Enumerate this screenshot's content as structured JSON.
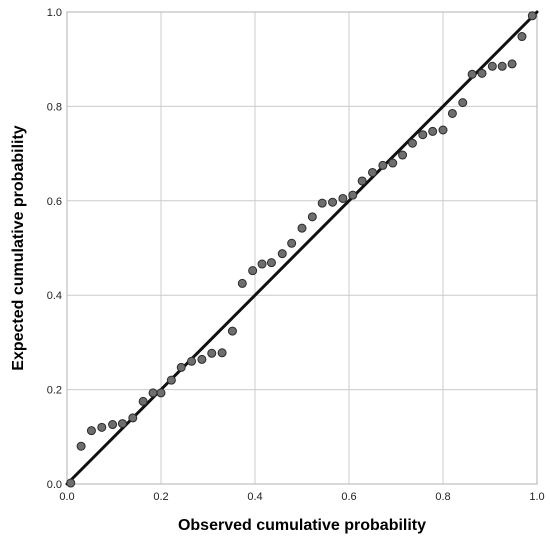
{
  "chart_data": {
    "type": "scatter",
    "xlabel": "Observed cumulative probability",
    "ylabel": "Expected cumulative probability",
    "xlim": [
      0,
      1
    ],
    "ylim": [
      0,
      1
    ],
    "xticks": [
      "0.0",
      "0.2",
      "0.4",
      "0.6",
      "0.8",
      "1.0"
    ],
    "yticks": [
      "0.0",
      "0.2",
      "0.4",
      "0.6",
      "0.8",
      "1.0"
    ],
    "grid": true,
    "reference_line": {
      "from": [
        0,
        0
      ],
      "to": [
        1,
        1
      ]
    },
    "colors": {
      "point_fill": "#6e6e6e",
      "point_stroke": "#2a2a2a",
      "line": "#111111",
      "grid": "#cccccc",
      "frame": "#b0b0b0"
    },
    "series": [
      {
        "points": [
          [
            0.008,
            0.002
          ],
          [
            0.03,
            0.08
          ],
          [
            0.052,
            0.113
          ],
          [
            0.074,
            0.12
          ],
          [
            0.097,
            0.126
          ],
          [
            0.118,
            0.128
          ],
          [
            0.14,
            0.14
          ],
          [
            0.162,
            0.175
          ],
          [
            0.183,
            0.193
          ],
          [
            0.2,
            0.193
          ],
          [
            0.222,
            0.22
          ],
          [
            0.243,
            0.247
          ],
          [
            0.265,
            0.26
          ],
          [
            0.287,
            0.264
          ],
          [
            0.308,
            0.277
          ],
          [
            0.33,
            0.278
          ],
          [
            0.352,
            0.324
          ],
          [
            0.373,
            0.425
          ],
          [
            0.395,
            0.452
          ],
          [
            0.415,
            0.466
          ],
          [
            0.435,
            0.469
          ],
          [
            0.458,
            0.488
          ],
          [
            0.478,
            0.51
          ],
          [
            0.5,
            0.542
          ],
          [
            0.522,
            0.566
          ],
          [
            0.543,
            0.595
          ],
          [
            0.565,
            0.597
          ],
          [
            0.587,
            0.605
          ],
          [
            0.608,
            0.612
          ],
          [
            0.628,
            0.642
          ],
          [
            0.65,
            0.66
          ],
          [
            0.672,
            0.675
          ],
          [
            0.693,
            0.68
          ],
          [
            0.714,
            0.697
          ],
          [
            0.735,
            0.722
          ],
          [
            0.757,
            0.74
          ],
          [
            0.778,
            0.747
          ],
          [
            0.8,
            0.75
          ],
          [
            0.82,
            0.785
          ],
          [
            0.842,
            0.808
          ],
          [
            0.862,
            0.868
          ],
          [
            0.883,
            0.87
          ],
          [
            0.905,
            0.885
          ],
          [
            0.926,
            0.885
          ],
          [
            0.947,
            0.89
          ],
          [
            0.968,
            0.948
          ],
          [
            0.99,
            0.992
          ]
        ]
      }
    ]
  }
}
